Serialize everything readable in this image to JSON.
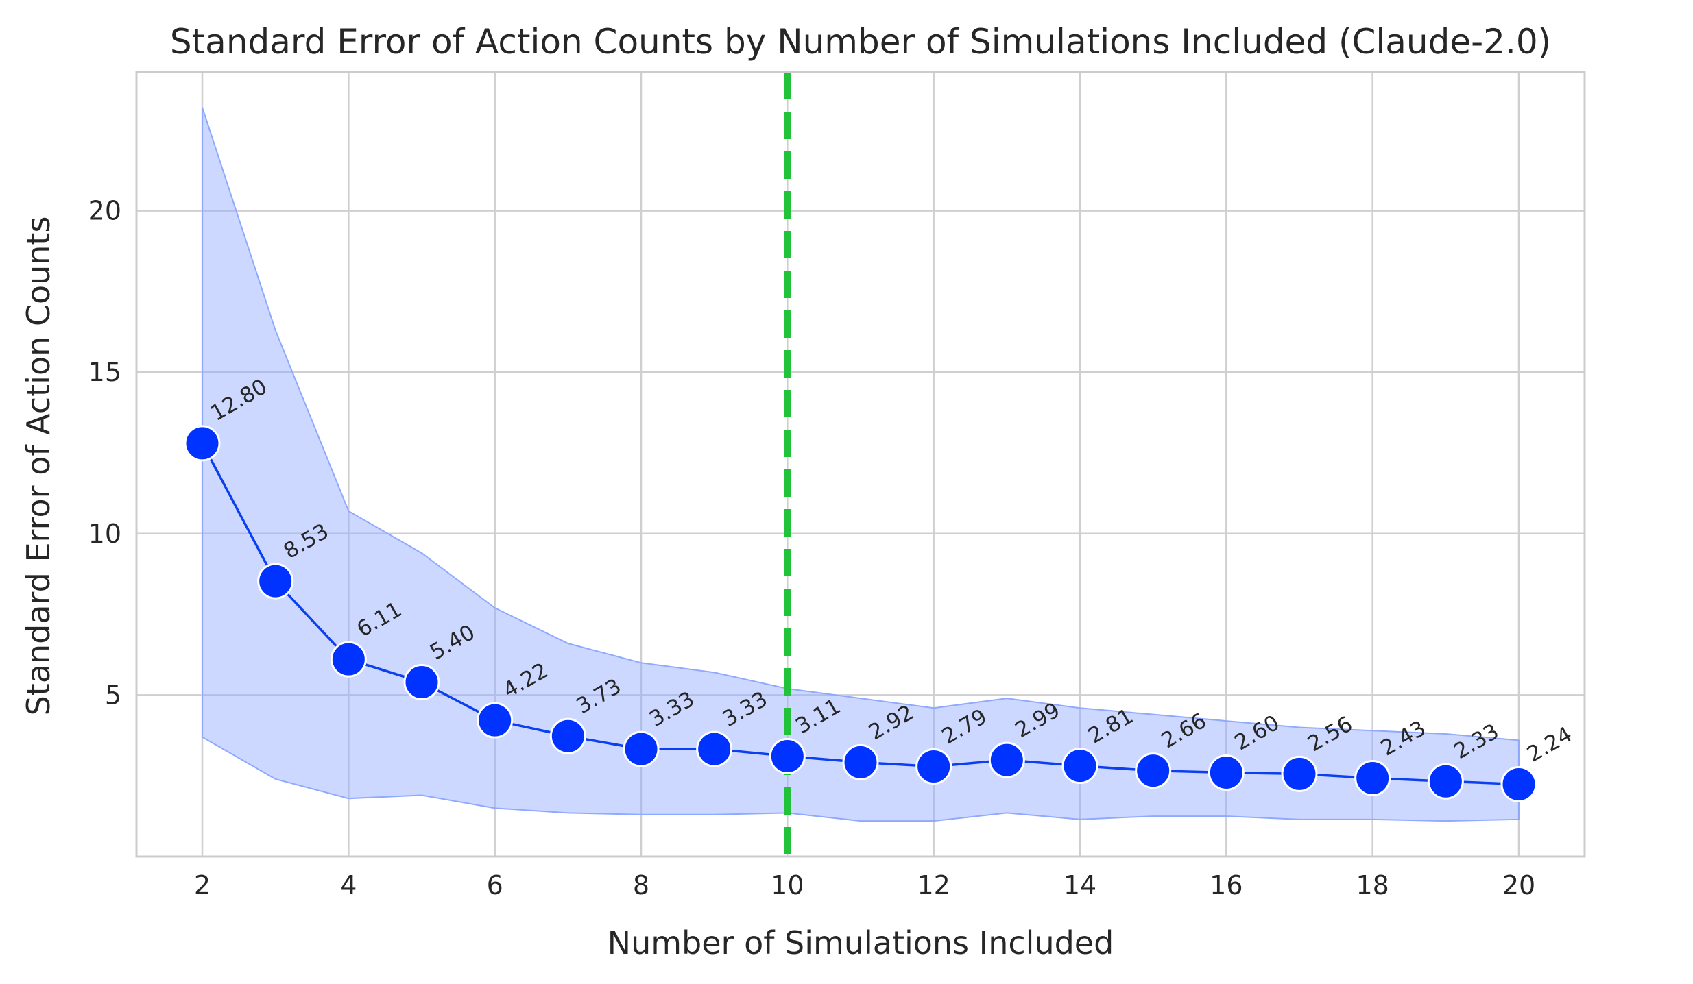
{
  "chart_data": {
    "type": "line",
    "title": "Standard Error of Action Counts by Number of Simulations Included (Claude-2.0)",
    "xlabel": "Number of Simulations Included",
    "ylabel": "Standard Error of Action Counts",
    "xlim": [
      1.1,
      20.9
    ],
    "ylim": [
      0,
      24.3
    ],
    "xticks": [
      2,
      4,
      6,
      8,
      10,
      12,
      14,
      16,
      18,
      20
    ],
    "yticks": [
      5,
      10,
      15,
      20
    ],
    "grid": true,
    "x": [
      2,
      3,
      4,
      5,
      6,
      7,
      8,
      9,
      10,
      11,
      12,
      13,
      14,
      15,
      16,
      17,
      18,
      19,
      20
    ],
    "series": [
      {
        "values": [
          12.8,
          8.53,
          6.11,
          5.4,
          4.22,
          3.73,
          3.33,
          3.33,
          3.11,
          2.92,
          2.79,
          2.99,
          2.81,
          2.66,
          2.6,
          2.56,
          2.43,
          2.33,
          2.24
        ],
        "labels": [
          "12.80",
          "8.53",
          "6.11",
          "5.40",
          "4.22",
          "3.73",
          "3.33",
          "3.33",
          "3.11",
          "2.92",
          "2.79",
          "2.99",
          "2.81",
          "2.66",
          "2.60",
          "2.56",
          "2.43",
          "2.33",
          "2.24"
        ],
        "band_upper": [
          23.2,
          16.3,
          10.7,
          9.4,
          7.7,
          6.6,
          6.0,
          5.7,
          5.2,
          4.9,
          4.6,
          4.9,
          4.6,
          4.4,
          4.2,
          4.0,
          3.9,
          3.8,
          3.6
        ],
        "band_lower": [
          3.7,
          2.4,
          1.8,
          1.9,
          1.5,
          1.35,
          1.3,
          1.3,
          1.35,
          1.1,
          1.1,
          1.35,
          1.15,
          1.25,
          1.25,
          1.15,
          1.15,
          1.1,
          1.15
        ]
      }
    ],
    "reference_line": {
      "x": 10,
      "style": "dashed",
      "color": "#22c33a"
    },
    "colors": {
      "line": "#0b3ff0",
      "marker": "#0033ff",
      "band": "#8fa9ff",
      "reference": "#22c33a",
      "grid": "#cfcfcf"
    }
  }
}
